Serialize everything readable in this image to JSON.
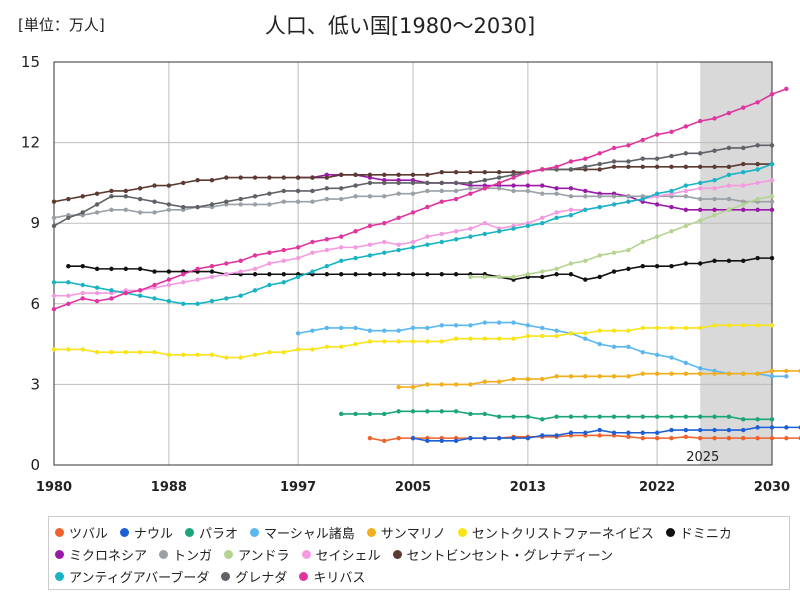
{
  "chart_data": {
    "type": "line",
    "title": "人口、低い国[1980～2030]",
    "unit_label": "[単位：万人]",
    "xlim": [
      1980,
      2030
    ],
    "ylim": [
      0,
      15
    ],
    "x_ticks": [
      1980,
      1988,
      1997,
      2005,
      2013,
      2022,
      2030
    ],
    "y_ticks": [
      0,
      3,
      6,
      9,
      12,
      15
    ],
    "forecast_start": 2025,
    "forecast_label": "2025",
    "grid": true,
    "legend_position": "bottom",
    "series": [
      {
        "name": "ツバル",
        "color": "#f0622b",
        "start": 2002,
        "values": [
          1.0,
          0.9,
          1.0,
          1.0,
          1.0,
          1.0,
          1.0,
          1.0,
          1.0,
          1.0,
          1.05,
          1.05,
          1.05,
          1.05,
          1.1,
          1.1,
          1.1,
          1.1,
          1.05,
          1.0,
          1.0,
          1.0,
          1.05,
          1.0,
          1.0,
          1.0,
          1.0,
          1.0,
          1.0,
          1.0,
          1.0
        ]
      },
      {
        "name": "ナウル",
        "color": "#1f5fd6",
        "start": 2005,
        "values": [
          1.0,
          0.9,
          0.9,
          0.9,
          1.0,
          1.0,
          1.0,
          1.0,
          1.0,
          1.1,
          1.1,
          1.2,
          1.2,
          1.3,
          1.2,
          1.2,
          1.2,
          1.2,
          1.3,
          1.3,
          1.3,
          1.3,
          1.3,
          1.3,
          1.4,
          1.4,
          1.4,
          1.4
        ]
      },
      {
        "name": "パラオ",
        "color": "#1aa57a",
        "start": 2000,
        "values": [
          1.9,
          1.9,
          1.9,
          1.9,
          2.0,
          2.0,
          2.0,
          2.0,
          2.0,
          1.9,
          1.9,
          1.8,
          1.8,
          1.8,
          1.7,
          1.8,
          1.8,
          1.8,
          1.8,
          1.8,
          1.8,
          1.8,
          1.8,
          1.8,
          1.8,
          1.8,
          1.8,
          1.8,
          1.7,
          1.7,
          1.7
        ]
      },
      {
        "name": "マーシャル諸島",
        "color": "#5ab7ef",
        "start": 1997,
        "values": [
          4.9,
          5.0,
          5.1,
          5.1,
          5.1,
          5.0,
          5.0,
          5.0,
          5.1,
          5.1,
          5.2,
          5.2,
          5.2,
          5.3,
          5.3,
          5.3,
          5.2,
          5.1,
          5.0,
          4.9,
          4.7,
          4.5,
          4.4,
          4.4,
          4.2,
          4.1,
          4.0,
          3.8,
          3.6,
          3.5,
          3.4,
          3.4,
          3.4,
          3.3,
          3.3
        ]
      },
      {
        "name": "サンマリノ",
        "color": "#f2ae1c",
        "start": 2004,
        "values": [
          2.9,
          2.9,
          3.0,
          3.0,
          3.0,
          3.0,
          3.1,
          3.1,
          3.2,
          3.2,
          3.2,
          3.3,
          3.3,
          3.3,
          3.3,
          3.3,
          3.3,
          3.4,
          3.4,
          3.4,
          3.4,
          3.4,
          3.4,
          3.4,
          3.4,
          3.4,
          3.5,
          3.5,
          3.5
        ]
      },
      {
        "name": "セントクリストファーネイビス",
        "color": "#f7e41a",
        "start": 1980,
        "values": [
          4.3,
          4.3,
          4.3,
          4.2,
          4.2,
          4.2,
          4.2,
          4.2,
          4.1,
          4.1,
          4.1,
          4.1,
          4.0,
          4.0,
          4.1,
          4.2,
          4.2,
          4.3,
          4.3,
          4.4,
          4.4,
          4.5,
          4.6,
          4.6,
          4.6,
          4.6,
          4.6,
          4.6,
          4.7,
          4.7,
          4.7,
          4.7,
          4.7,
          4.8,
          4.8,
          4.8,
          4.9,
          4.9,
          5.0,
          5.0,
          5.0,
          5.1,
          5.1,
          5.1,
          5.1,
          5.1,
          5.2,
          5.2,
          5.2,
          5.2,
          5.2
        ]
      },
      {
        "name": "ドミニカ",
        "color": "#111111",
        "start": 1981,
        "values": [
          7.4,
          7.4,
          7.3,
          7.3,
          7.3,
          7.3,
          7.2,
          7.2,
          7.2,
          7.2,
          7.2,
          7.1,
          7.1,
          7.1,
          7.1,
          7.1,
          7.1,
          7.1,
          7.1,
          7.1,
          7.1,
          7.1,
          7.1,
          7.1,
          7.1,
          7.1,
          7.1,
          7.1,
          7.1,
          7.1,
          7.0,
          6.9,
          7.0,
          7.0,
          7.1,
          7.1,
          6.9,
          7.0,
          7.2,
          7.3,
          7.4,
          7.4,
          7.4,
          7.5,
          7.5,
          7.6,
          7.6,
          7.6,
          7.7,
          7.7
        ]
      },
      {
        "name": "ミクロネシア",
        "color": "#9a1aa8",
        "start": 1997,
        "values": [
          10.7,
          10.7,
          10.8,
          10.8,
          10.8,
          10.7,
          10.6,
          10.6,
          10.6,
          10.5,
          10.5,
          10.5,
          10.4,
          10.4,
          10.4,
          10.4,
          10.4,
          10.4,
          10.3,
          10.3,
          10.2,
          10.1,
          10.1,
          10.0,
          9.8,
          9.7,
          9.6,
          9.5,
          9.5,
          9.5,
          9.5,
          9.5,
          9.5,
          9.5
        ]
      },
      {
        "name": "トンガ",
        "color": "#9aa0a6",
        "start": 1980,
        "values": [
          9.2,
          9.3,
          9.3,
          9.4,
          9.5,
          9.5,
          9.4,
          9.4,
          9.5,
          9.5,
          9.6,
          9.6,
          9.7,
          9.7,
          9.7,
          9.7,
          9.8,
          9.8,
          9.8,
          9.9,
          9.9,
          10.0,
          10.0,
          10.0,
          10.1,
          10.1,
          10.2,
          10.2,
          10.2,
          10.3,
          10.3,
          10.3,
          10.2,
          10.2,
          10.1,
          10.1,
          10.0,
          10.0,
          10.0,
          10.0,
          10.0,
          10.0,
          10.0,
          10.0,
          10.0,
          9.9,
          9.9,
          9.9,
          9.8,
          9.8,
          9.8
        ]
      },
      {
        "name": "アンドラ",
        "color": "#b5d492",
        "start": 2009,
        "values": [
          7.0,
          7.0,
          7.0,
          7.0,
          7.1,
          7.2,
          7.3,
          7.5,
          7.6,
          7.8,
          7.9,
          8.0,
          8.3,
          8.5,
          8.7,
          8.9,
          9.1,
          9.3,
          9.5,
          9.7,
          9.9,
          10.0
        ]
      },
      {
        "name": "セイシェル",
        "color": "#f59ae0",
        "start": 1980,
        "values": [
          6.3,
          6.3,
          6.4,
          6.4,
          6.4,
          6.5,
          6.5,
          6.6,
          6.7,
          6.8,
          6.9,
          7.0,
          7.1,
          7.2,
          7.3,
          7.5,
          7.6,
          7.7,
          7.9,
          8.0,
          8.1,
          8.1,
          8.2,
          8.3,
          8.2,
          8.3,
          8.5,
          8.6,
          8.7,
          8.8,
          9.0,
          8.8,
          8.9,
          9.0,
          9.2,
          9.4,
          9.5,
          9.5,
          9.6,
          9.7,
          9.8,
          9.9,
          10.0,
          10.1,
          10.2,
          10.3,
          10.3,
          10.4,
          10.4,
          10.5,
          10.6
        ]
      },
      {
        "name": "セントビンセント・グレナディーン",
        "color": "#5b3a32",
        "start": 1980,
        "values": [
          9.8,
          9.9,
          10.0,
          10.1,
          10.2,
          10.2,
          10.3,
          10.4,
          10.4,
          10.5,
          10.6,
          10.6,
          10.7,
          10.7,
          10.7,
          10.7,
          10.7,
          10.7,
          10.7,
          10.7,
          10.8,
          10.8,
          10.8,
          10.8,
          10.8,
          10.8,
          10.8,
          10.9,
          10.9,
          10.9,
          10.9,
          10.9,
          10.9,
          10.9,
          11.0,
          11.0,
          11.0,
          11.0,
          11.0,
          11.1,
          11.1,
          11.1,
          11.1,
          11.1,
          11.1,
          11.1,
          11.1,
          11.1,
          11.2,
          11.2,
          11.2
        ]
      },
      {
        "name": "アンティグアバーブーダ",
        "color": "#19b3c4",
        "start": 1980,
        "values": [
          6.8,
          6.8,
          6.7,
          6.6,
          6.5,
          6.4,
          6.3,
          6.2,
          6.1,
          6.0,
          6.0,
          6.1,
          6.2,
          6.3,
          6.5,
          6.7,
          6.8,
          7.0,
          7.2,
          7.4,
          7.6,
          7.7,
          7.8,
          7.9,
          8.0,
          8.1,
          8.2,
          8.3,
          8.4,
          8.5,
          8.6,
          8.7,
          8.8,
          8.9,
          9.0,
          9.2,
          9.3,
          9.5,
          9.6,
          9.7,
          9.8,
          9.9,
          10.1,
          10.2,
          10.4,
          10.5,
          10.6,
          10.8,
          10.9,
          11.0,
          11.2
        ]
      },
      {
        "name": "グレナダ",
        "color": "#5f6166",
        "start": 1980,
        "values": [
          8.9,
          9.2,
          9.4,
          9.7,
          10.0,
          10.0,
          9.9,
          9.8,
          9.7,
          9.6,
          9.6,
          9.7,
          9.8,
          9.9,
          10.0,
          10.1,
          10.2,
          10.2,
          10.2,
          10.3,
          10.3,
          10.4,
          10.5,
          10.5,
          10.5,
          10.5,
          10.5,
          10.5,
          10.5,
          10.5,
          10.6,
          10.7,
          10.8,
          10.9,
          11.0,
          11.0,
          11.0,
          11.1,
          11.2,
          11.3,
          11.3,
          11.4,
          11.4,
          11.5,
          11.6,
          11.6,
          11.7,
          11.8,
          11.8,
          11.9,
          11.9
        ]
      },
      {
        "name": "キリバス",
        "color": "#e0359e",
        "start": 1980,
        "values": [
          5.8,
          6.0,
          6.2,
          6.1,
          6.2,
          6.4,
          6.5,
          6.7,
          6.9,
          7.1,
          7.3,
          7.4,
          7.5,
          7.6,
          7.8,
          7.9,
          8.0,
          8.1,
          8.3,
          8.4,
          8.5,
          8.7,
          8.9,
          9.0,
          9.2,
          9.4,
          9.6,
          9.8,
          9.9,
          10.1,
          10.3,
          10.5,
          10.7,
          10.9,
          11.0,
          11.1,
          11.3,
          11.4,
          11.6,
          11.8,
          11.9,
          12.1,
          12.3,
          12.4,
          12.6,
          12.8,
          12.9,
          13.1,
          13.3,
          13.5,
          13.8,
          14.0
        ]
      }
    ]
  }
}
